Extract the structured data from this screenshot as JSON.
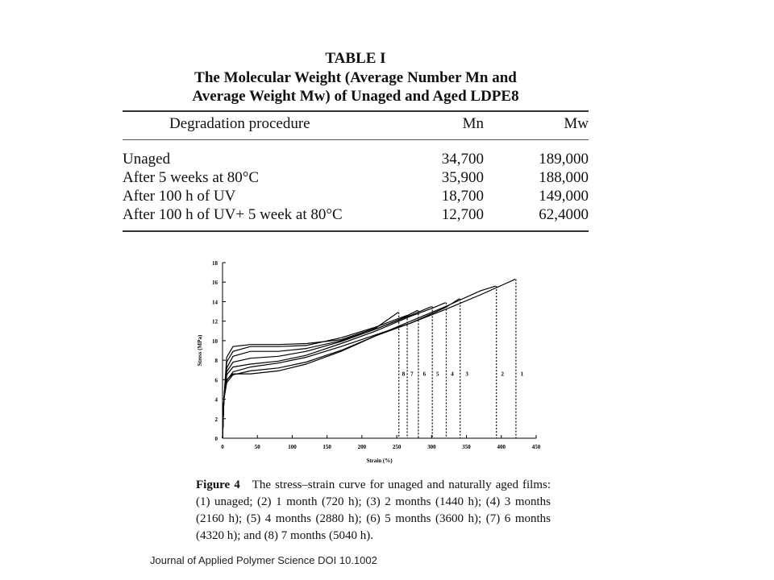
{
  "table": {
    "title": "TABLE I",
    "caption_line1": "The Molecular Weight (Average Number Mn and",
    "caption_line2": "Average Weight Mw) of Unaged and Aged LDPE8",
    "headers": [
      "Degradation procedure",
      "Mn",
      "Mw"
    ],
    "rows": [
      [
        "Unaged",
        "34,700",
        "189,000"
      ],
      [
        "After 5 weeks at 80°C",
        "35,900",
        "188,000"
      ],
      [
        "After 100 h of UV",
        "18,700",
        "149,000"
      ],
      [
        "After 100 h of UV+ 5 week at 80°C",
        "12,700",
        "62,4000"
      ]
    ]
  },
  "chart_data": {
    "type": "line",
    "xlabel": "Strain (%)",
    "ylabel": "Stress (MPa)",
    "xlim": [
      0,
      450
    ],
    "ylim": [
      0,
      18
    ],
    "xticks": [
      0,
      50,
      100,
      150,
      200,
      250,
      300,
      350,
      400,
      450
    ],
    "yticks": [
      0,
      2,
      4,
      6,
      8,
      10,
      12,
      14,
      16,
      18
    ],
    "grid": false,
    "series": [
      {
        "name": "1",
        "x": [
          0,
          2,
          6,
          15,
          40,
          80,
          120,
          170,
          220,
          270,
          320,
          370,
          420
        ],
        "y": [
          0,
          4,
          5.9,
          6.8,
          7.3,
          7.7,
          8.3,
          9.4,
          10.6,
          11.8,
          13.2,
          14.7,
          16.3
        ],
        "break_x": 421
      },
      {
        "name": "2",
        "x": [
          0,
          2,
          6,
          15,
          40,
          80,
          120,
          170,
          220,
          270,
          320,
          370,
          392
        ],
        "y": [
          0,
          4,
          5.7,
          6.5,
          6.9,
          7.2,
          7.8,
          9.0,
          10.5,
          12.0,
          13.5,
          15.1,
          15.6
        ],
        "break_x": 393
      },
      {
        "name": "3",
        "x": [
          0,
          2,
          6,
          15,
          40,
          80,
          120,
          170,
          220,
          270,
          320,
          340
        ],
        "y": [
          0,
          4,
          6.0,
          6.6,
          6.6,
          6.9,
          7.6,
          8.9,
          10.5,
          11.8,
          13.4,
          14.3
        ],
        "break_x": 341
      },
      {
        "name": "4",
        "x": [
          0,
          2,
          6,
          15,
          40,
          80,
          120,
          170,
          220,
          270,
          300,
          320
        ],
        "y": [
          0,
          4,
          6.5,
          7.3,
          7.6,
          7.9,
          8.5,
          9.7,
          11.0,
          12.5,
          13.3,
          13.9
        ],
        "break_x": 321
      },
      {
        "name": "5",
        "x": [
          0,
          2,
          6,
          15,
          40,
          80,
          120,
          170,
          220,
          270,
          300
        ],
        "y": [
          0,
          4,
          6.8,
          7.8,
          8.2,
          8.4,
          8.9,
          9.9,
          11.2,
          12.6,
          13.5
        ],
        "break_x": 301
      },
      {
        "name": "6",
        "x": [
          0,
          2,
          6,
          15,
          40,
          80,
          120,
          170,
          220,
          255,
          280
        ],
        "y": [
          0,
          4,
          7.2,
          8.4,
          8.9,
          8.9,
          9.2,
          10.0,
          11.2,
          12.2,
          13.1
        ],
        "break_x": 281
      },
      {
        "name": "7",
        "x": [
          0,
          2,
          6,
          15,
          40,
          80,
          120,
          170,
          220,
          250,
          265
        ],
        "y": [
          0,
          4,
          7.8,
          8.9,
          9.4,
          9.4,
          9.5,
          10.3,
          11.4,
          12.2,
          12.6
        ],
        "break_x": 265
      },
      {
        "name": "8",
        "x": [
          0,
          2,
          6,
          15,
          40,
          80,
          120,
          170,
          220,
          240,
          252
        ],
        "y": [
          0,
          4,
          8.3,
          9.4,
          9.6,
          9.6,
          9.7,
          10.1,
          11.3,
          12.3,
          12.9
        ],
        "break_x": 253
      }
    ],
    "break_labels": [
      {
        "label": "8",
        "x": 253
      },
      {
        "label": "7",
        "x": 265
      },
      {
        "label": "6",
        "x": 283
      },
      {
        "label": "5",
        "x": 302
      },
      {
        "label": "4",
        "x": 323
      },
      {
        "label": "3",
        "x": 344
      },
      {
        "label": "2",
        "x": 395
      },
      {
        "label": "1",
        "x": 423
      }
    ]
  },
  "figure": {
    "number": "Figure 4",
    "caption": "The stress–strain curve for unaged and naturally aged films: (1) unaged; (2) 1 month (720 h); (3) 2 months (1440 h); (4) 3 months (2160 h); (5) 4 months (2880 h); (6) 5 months (3600 h); (7) 6 months (4320 h); and (8) 7 months (5040 h)."
  },
  "footer": {
    "journal": "Journal of Applied Polymer Science DOI 10.1002"
  }
}
